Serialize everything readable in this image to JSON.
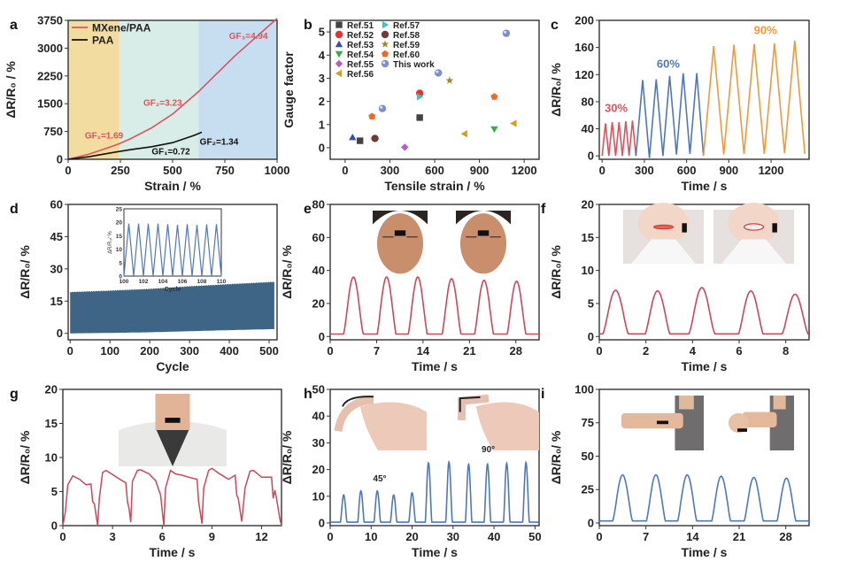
{
  "figure": {
    "panels": [
      "a",
      "b",
      "c",
      "d",
      "e",
      "f",
      "g",
      "h",
      "i"
    ]
  },
  "chart_data": [
    {
      "panel": "a",
      "type": "line",
      "xlabel": "Strain / %",
      "ylabel": "ΔR/R₀ / %",
      "xlim": [
        0,
        1000
      ],
      "ylim": [
        0,
        3750
      ],
      "xticks": [
        0,
        250,
        500,
        750,
        1000
      ],
      "yticks": [
        0,
        750,
        1500,
        2250,
        3000,
        3750
      ],
      "legend": {
        "placement": "top-left",
        "entries": [
          "MXene/PAA",
          "PAA"
        ]
      },
      "regions": [
        {
          "from": 0,
          "to": 245,
          "color": "#f3dca0"
        },
        {
          "from": 245,
          "to": 625,
          "color": "#d8ece8"
        },
        {
          "from": 625,
          "to": 1000,
          "color": "#c6def0"
        }
      ],
      "series": [
        {
          "name": "MXene/PAA",
          "color": "#d9545f",
          "x": [
            0,
            100,
            200,
            245,
            300,
            400,
            500,
            625,
            700,
            800,
            900,
            1000
          ],
          "y": [
            0,
            140,
            330,
            420,
            560,
            850,
            1220,
            1830,
            2250,
            2800,
            3300,
            3800
          ]
        },
        {
          "name": "PAA",
          "color": "#111111",
          "x": [
            0,
            100,
            200,
            300,
            400,
            500,
            600,
            640
          ],
          "y": [
            0,
            70,
            170,
            260,
            340,
            450,
            640,
            730
          ]
        }
      ],
      "annotations": [
        {
          "text": "GF₁=1.69",
          "x": 80,
          "y": 560,
          "color": "#d9545f"
        },
        {
          "text": "GF₂=3.23",
          "x": 360,
          "y": 1450,
          "color": "#d9545f"
        },
        {
          "text": "GF₃=4.94",
          "x": 770,
          "y": 3250,
          "color": "#d9545f"
        },
        {
          "text": "GF₁=0.72",
          "x": 400,
          "y": 130,
          "color": "#111111"
        },
        {
          "text": "GF₂=1.34",
          "x": 630,
          "y": 400,
          "color": "#111111"
        }
      ]
    },
    {
      "panel": "b",
      "type": "scatter",
      "xlabel": "Tensile strain / %",
      "ylabel": "Gauge factor",
      "xlim": [
        -100,
        1300
      ],
      "ylim": [
        -0.5,
        5.5
      ],
      "xticks": [
        0,
        300,
        600,
        900,
        1200
      ],
      "yticks": [
        0,
        1,
        2,
        3,
        4,
        5
      ],
      "legend": {
        "placement": "top-left"
      },
      "series": [
        {
          "name": "Ref.51",
          "marker": "square",
          "color": "#444444",
          "points": [
            [
              100,
              0.3
            ],
            [
              500,
              1.3
            ]
          ]
        },
        {
          "name": "Ref.52",
          "marker": "circle",
          "color": "#e8302e",
          "points": [
            [
              500,
              2.35
            ]
          ]
        },
        {
          "name": "Ref.53",
          "marker": "triangle-up",
          "color": "#3a4fa8",
          "points": [
            [
              50,
              0.45
            ]
          ]
        },
        {
          "name": "Ref.54",
          "marker": "triangle-down",
          "color": "#3fa84a",
          "points": [
            [
              1000,
              0.8
            ]
          ]
        },
        {
          "name": "Ref.55",
          "marker": "diamond",
          "color": "#b45cc8",
          "points": [
            [
              400,
              0.02
            ]
          ]
        },
        {
          "name": "Ref.56",
          "marker": "triangle-left",
          "color": "#d4a020",
          "points": [
            [
              800,
              0.6
            ],
            [
              1130,
              1.05
            ]
          ]
        },
        {
          "name": "Ref.57",
          "marker": "triangle-right",
          "color": "#40c4b8",
          "points": [
            [
              500,
              2.2
            ]
          ]
        },
        {
          "name": "Ref.58",
          "marker": "circle",
          "color": "#6e3d36",
          "points": [
            [
              200,
              0.4
            ]
          ]
        },
        {
          "name": "Ref.59",
          "marker": "star",
          "color": "#9c8a2a",
          "points": [
            [
              700,
              2.9
            ]
          ]
        },
        {
          "name": "Ref.60",
          "marker": "pentagon",
          "color": "#ee6a2a",
          "points": [
            [
              180,
              1.35
            ],
            [
              1000,
              2.2
            ]
          ]
        },
        {
          "name": "This work",
          "marker": "sphere",
          "color": "#7b8fd0",
          "points": [
            [
              250,
              1.69
            ],
            [
              625,
              3.23
            ],
            [
              1080,
              4.94
            ]
          ]
        }
      ]
    },
    {
      "panel": "c",
      "type": "line",
      "xlabel": "Time / s",
      "ylabel": "ΔR/R₀/ %",
      "xlim": [
        -20,
        1470
      ],
      "ylim": [
        -5,
        200
      ],
      "xticks": [
        0,
        300,
        600,
        900,
        1200
      ],
      "yticks": [
        0,
        40,
        80,
        120,
        160,
        200
      ],
      "series": [
        {
          "name": "30%",
          "color": "#d9545f",
          "x": [
            0,
            24,
            48,
            72,
            96,
            120,
            144,
            168,
            192,
            216,
            240
          ],
          "y": [
            0,
            48,
            0,
            50,
            0,
            50,
            0,
            51,
            0,
            52,
            0
          ]
        },
        {
          "name": "60%",
          "color": "#4f78b8",
          "x": [
            240,
            288,
            336,
            384,
            432,
            480,
            528,
            576,
            624,
            672,
            720
          ],
          "y": [
            0,
            112,
            -3,
            113,
            0,
            118,
            2,
            122,
            3,
            122,
            0
          ]
        },
        {
          "name": "90%",
          "color": "#ee9a3c",
          "x": [
            720,
            792,
            864,
            936,
            1008,
            1080,
            1152,
            1224,
            1296,
            1368,
            1440
          ],
          "y": [
            0,
            162,
            2,
            164,
            3,
            165,
            3,
            166,
            4,
            170,
            3
          ]
        }
      ],
      "annotations": [
        {
          "text": "30%",
          "x": 100,
          "y": 65,
          "color": "#d9545f"
        },
        {
          "text": "60%",
          "x": 470,
          "y": 130,
          "color": "#4f78b8"
        },
        {
          "text": "90%",
          "x": 1160,
          "y": 180,
          "color": "#ee9a3c"
        }
      ]
    },
    {
      "panel": "d",
      "type": "area",
      "xlabel": "Cycle",
      "ylabel": "ΔR/R₀/ %",
      "xlim": [
        -5,
        520
      ],
      "ylim": [
        -3,
        60
      ],
      "xticks": [
        0,
        100,
        200,
        300,
        400,
        500
      ],
      "yticks": [
        0,
        15,
        30,
        45,
        60
      ],
      "series": [
        {
          "name": "cyclic response envelope",
          "color": "#3e6585",
          "x": [
            0,
            100,
            200,
            300,
            400,
            515
          ],
          "upper": [
            19,
            19.7,
            20.5,
            21.7,
            22.7,
            23.8
          ],
          "lower": [
            0,
            0.2,
            0.5,
            1,
            1.5,
            2
          ]
        }
      ],
      "inset": {
        "xlabel": "Cycle",
        "ylabel": "ΔR/R₀/ %",
        "xlim": [
          100,
          110
        ],
        "ylim": [
          0,
          25
        ],
        "xticks": [
          100,
          102,
          104,
          106,
          108,
          110
        ],
        "yticks": [
          0,
          5,
          10,
          15,
          20,
          25
        ],
        "color": "#4f78b8",
        "peaks": [
          19.5,
          19.5,
          19.5,
          19.5,
          19.3,
          19,
          19.3,
          19,
          19.2,
          19.3
        ]
      }
    },
    {
      "panel": "e",
      "type": "line",
      "xlabel": "Time / s",
      "ylabel": "ΔR/R₀/ %",
      "xlim": [
        0,
        31.5
      ],
      "ylim": [
        -2,
        80
      ],
      "xticks": [
        0,
        7,
        14,
        21,
        28
      ],
      "yticks": [
        0,
        20,
        40,
        60,
        80
      ],
      "color": "#c9485a",
      "peaks": [
        {
          "t": 3.5,
          "h": 36
        },
        {
          "t": 8.5,
          "h": 36
        },
        {
          "t": 13.2,
          "h": 36
        },
        {
          "t": 18.3,
          "h": 35
        },
        {
          "t": 23.2,
          "h": 34
        },
        {
          "t": 28.1,
          "h": 33.5
        }
      ],
      "baseline": 1.5,
      "photos": [
        "face-relaxed",
        "face-frown"
      ]
    },
    {
      "panel": "f",
      "type": "line",
      "xlabel": "Time / s",
      "ylabel": "ΔR/R₀/ %",
      "xlim": [
        0,
        9
      ],
      "ylim": [
        -0.5,
        20
      ],
      "xticks": [
        0,
        2,
        4,
        6,
        8
      ],
      "yticks": [
        0,
        5,
        10,
        15,
        20
      ],
      "color": "#c9485a",
      "peaks": [
        {
          "t": 0.7,
          "h": 7
        },
        {
          "t": 2.5,
          "h": 6.9
        },
        {
          "t": 4.4,
          "h": 7.4
        },
        {
          "t": 6.5,
          "h": 6.9
        },
        {
          "t": 8.4,
          "h": 6.4
        }
      ],
      "baseline": 0.4,
      "photos": [
        "mouth-closed",
        "mouth-smile"
      ]
    },
    {
      "panel": "g",
      "type": "line",
      "xlabel": "Time / s",
      "ylabel": "ΔR/R₀/ %",
      "xlim": [
        0,
        13.2
      ],
      "ylim": [
        0,
        20
      ],
      "xticks": [
        0,
        3,
        6,
        9,
        12
      ],
      "yticks": [
        0,
        5,
        10,
        15,
        20
      ],
      "color": "#c9485a",
      "x": [
        0,
        0.15,
        0.3,
        0.6,
        1.0,
        1.4,
        1.7,
        1.8,
        1.9,
        2.1,
        2.2,
        2.4,
        2.6,
        3.0,
        3.5,
        3.8,
        3.9,
        4.0,
        4.1,
        4.2,
        4.5,
        4.7,
        5.2,
        5.6,
        5.9,
        6.1,
        6.2,
        6.5,
        6.8,
        7.2,
        7.6,
        8.1,
        8.2,
        8.4,
        8.5,
        8.8,
        9.0,
        9.4,
        10.0,
        10.4,
        10.5,
        10.6,
        10.8,
        11.0,
        11.3,
        11.5,
        12.0,
        12.6,
        12.7,
        12.8,
        12.9,
        13.1,
        13.2
      ],
      "y": [
        0,
        2,
        6,
        7.3,
        6.8,
        6.0,
        6.1,
        3.5,
        3.2,
        0,
        4,
        7.8,
        8.1,
        7.5,
        6.7,
        6.3,
        3.5,
        2.5,
        0.5,
        6.5,
        8.1,
        8.2,
        7.6,
        6.6,
        4.5,
        0,
        5.5,
        8.1,
        7.6,
        7.4,
        7.1,
        6.8,
        3.5,
        0.3,
        5.5,
        8.1,
        8.4,
        7.7,
        6.8,
        7.4,
        4.5,
        3.9,
        0.6,
        5.5,
        8.0,
        8.1,
        7.1,
        7.1,
        4.0,
        5.2,
        4.0,
        1,
        0
      ],
      "photos": [
        "neck-with-sensor"
      ]
    },
    {
      "panel": "h",
      "type": "line",
      "xlabel": "Time / s",
      "ylabel": "ΔR/R₀/ %",
      "xlim": [
        0,
        51
      ],
      "ylim": [
        -1,
        50
      ],
      "xticks": [
        0,
        10,
        20,
        30,
        40,
        50
      ],
      "yticks": [
        0,
        10,
        20,
        30,
        40,
        50
      ],
      "color": "#4f78b8",
      "peaks": [
        {
          "t": 3.3,
          "h": 10.5
        },
        {
          "t": 7.5,
          "h": 12
        },
        {
          "t": 11.5,
          "h": 12
        },
        {
          "t": 15.5,
          "h": 10.5
        },
        {
          "t": 20,
          "h": 11.3
        },
        {
          "t": 24,
          "h": 22.5
        },
        {
          "t": 29,
          "h": 22.8
        },
        {
          "t": 33.8,
          "h": 22
        },
        {
          "t": 38.4,
          "h": 22
        },
        {
          "t": 43.1,
          "h": 22.3
        },
        {
          "t": 47.8,
          "h": 22.7
        }
      ],
      "baseline": 0.3,
      "annotations": [
        {
          "text": "45°",
          "x": 12.1,
          "y": 15.5
        },
        {
          "text": "90°",
          "x": 38.6,
          "y": 26.5
        }
      ],
      "photos": [
        "finger-bent-45",
        "finger-bent-90"
      ]
    },
    {
      "panel": "i",
      "type": "line",
      "xlabel": "Time / s",
      "ylabel": "ΔR/R₀/ %",
      "xlim": [
        0,
        31.5
      ],
      "ylim": [
        -2,
        100
      ],
      "xticks": [
        0,
        7,
        14,
        21,
        28
      ],
      "yticks": [
        0,
        25,
        50,
        75,
        100
      ],
      "color": "#4f78b8",
      "peaks": [
        {
          "t": 3.5,
          "h": 36
        },
        {
          "t": 8.5,
          "h": 36
        },
        {
          "t": 13.2,
          "h": 36
        },
        {
          "t": 18.3,
          "h": 35
        },
        {
          "t": 23.2,
          "h": 34
        },
        {
          "t": 28.1,
          "h": 33.5
        }
      ],
      "baseline": 1.5,
      "photos": [
        "arm-straight",
        "arm-bent"
      ]
    }
  ]
}
